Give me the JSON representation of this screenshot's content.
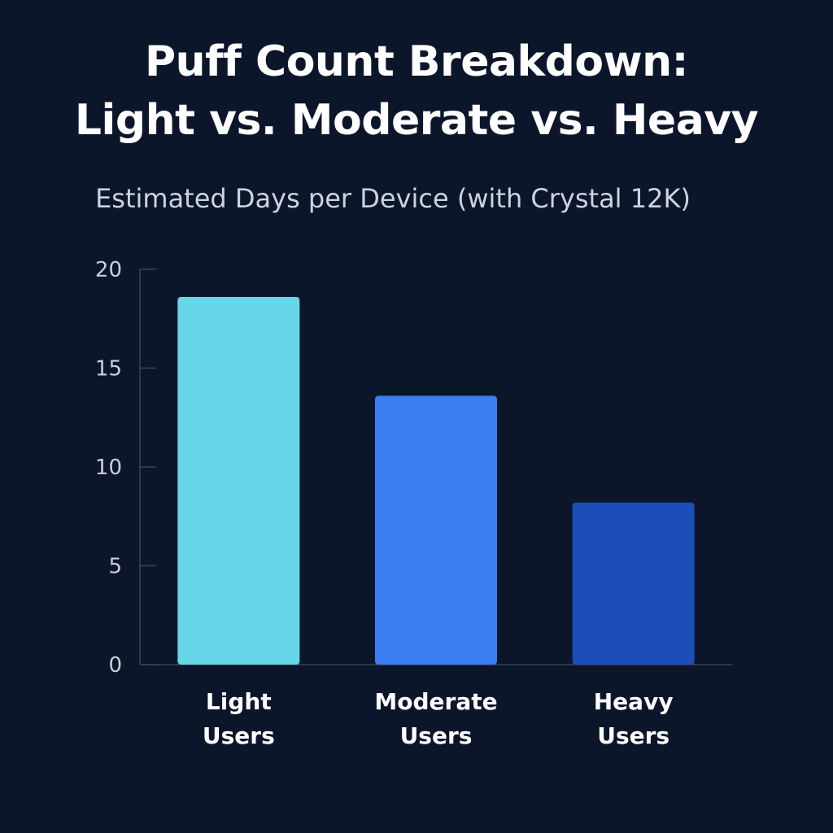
{
  "chart_data": {
    "type": "bar",
    "title": [
      "Puff Count Breakdown:",
      "Light vs. Moderate vs. Heavy"
    ],
    "subtitle": "Estimated Days per Device (with Crystal 12K)",
    "categories": [
      [
        "Light",
        "Users"
      ],
      [
        "Moderate",
        "Users"
      ],
      [
        "Heavy",
        "Users"
      ]
    ],
    "values": [
      18.6,
      13.6,
      8.2
    ],
    "bar_colors": [
      "#66d6e8",
      "#3a7df0",
      "#1c4eb8"
    ],
    "ylim": [
      0,
      20
    ],
    "yticks": [
      0,
      5,
      10,
      15,
      20
    ],
    "grid": false,
    "xlabel": "",
    "ylabel": ""
  }
}
